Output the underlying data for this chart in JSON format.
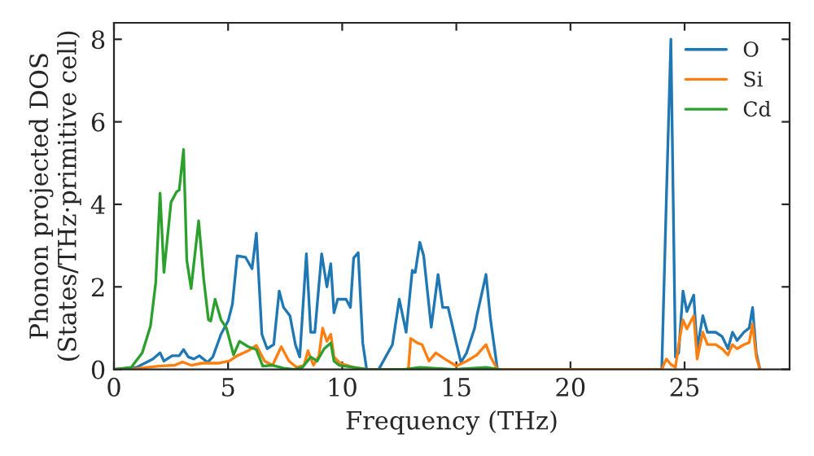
{
  "chart_data": {
    "type": "line",
    "xlabel": "Frequency (THz)",
    "ylabel": "Phonon projected DOS\n(States/THz·primitive cell)",
    "xlim": [
      0,
      29.6
    ],
    "ylim": [
      0,
      8.4
    ],
    "xticks": [
      0,
      5,
      10,
      15,
      20,
      25
    ],
    "yticks": [
      0,
      2,
      4,
      6,
      8
    ],
    "grid": false,
    "legend": "top right",
    "marker": "none",
    "line_style": "solid",
    "series": [
      {
        "name": "O",
        "color": "#1f77b4",
        "x": [
          0,
          1.0,
          1.7,
          2.02,
          2.19,
          2.55,
          2.86,
          3.05,
          3.26,
          3.5,
          3.74,
          4.1,
          4.33,
          4.69,
          5.0,
          5.19,
          5.4,
          5.76,
          6.05,
          6.24,
          6.48,
          6.71,
          7.0,
          7.24,
          7.43,
          7.71,
          7.95,
          8.14,
          8.43,
          8.62,
          8.8,
          9.1,
          9.33,
          9.5,
          9.64,
          9.8,
          10.17,
          10.36,
          10.5,
          10.7,
          10.9,
          11.07,
          11.6,
          12.2,
          12.5,
          12.8,
          13.07,
          13.2,
          13.4,
          13.57,
          13.9,
          14.2,
          14.4,
          14.64,
          15.0,
          15.2,
          15.45,
          15.8,
          15.9,
          16.3,
          16.5,
          16.8,
          24.0,
          24.2,
          24.4,
          24.6,
          24.74,
          24.93,
          25.1,
          25.4,
          25.55,
          25.8,
          26.0,
          26.36,
          26.64,
          26.9,
          27.1,
          27.3,
          27.6,
          27.83,
          27.98,
          28.14,
          28.3
        ],
        "values": [
          0,
          0.05,
          0.25,
          0.4,
          0.2,
          0.33,
          0.33,
          0.48,
          0.3,
          0.25,
          0.33,
          0.17,
          0.3,
          0.85,
          1.17,
          1.58,
          2.75,
          2.72,
          2.44,
          3.3,
          0.85,
          0.5,
          0.6,
          1.9,
          1.5,
          1.3,
          0.6,
          0.3,
          2.8,
          0.9,
          0.9,
          2.8,
          2.0,
          2.56,
          1.37,
          1.7,
          1.7,
          1.5,
          2.7,
          2.83,
          0.64,
          0,
          0,
          0.6,
          1.7,
          0.9,
          2.4,
          2.35,
          3.08,
          2.75,
          1.02,
          2.3,
          1.5,
          1.5,
          0.64,
          0.17,
          0.4,
          1.0,
          1.3,
          2.3,
          1.2,
          0,
          0,
          4.1,
          8.0,
          0.3,
          0.4,
          1.9,
          1.4,
          1.8,
          0.5,
          1.3,
          0.9,
          0.9,
          0.8,
          0.5,
          0.9,
          0.7,
          0.9,
          1.0,
          1.5,
          0.4,
          0
        ]
      },
      {
        "name": "Si",
        "color": "#ff7f0e",
        "x": [
          0,
          1.0,
          1.95,
          2.67,
          3.0,
          3.38,
          3.86,
          4.57,
          5.05,
          5.4,
          5.88,
          6.24,
          6.6,
          6.95,
          7.33,
          7.67,
          8.0,
          8.33,
          8.5,
          8.74,
          8.98,
          9.14,
          9.33,
          9.5,
          9.64,
          9.9,
          10.5,
          11.1,
          12.9,
          13.0,
          13.3,
          13.5,
          13.8,
          14.1,
          14.5,
          14.8,
          15.0,
          15.45,
          15.9,
          16.3,
          16.5,
          16.8,
          24.0,
          24.2,
          24.4,
          24.6,
          24.74,
          24.93,
          25.1,
          25.4,
          25.55,
          25.8,
          26.0,
          26.36,
          26.64,
          26.9,
          27.1,
          27.3,
          27.6,
          27.83,
          27.98,
          28.14,
          28.3
        ],
        "values": [
          0,
          0.02,
          0.08,
          0.1,
          0.18,
          0.1,
          0.15,
          0.15,
          0.2,
          0.33,
          0.45,
          0.58,
          0.2,
          0.1,
          0.55,
          0.2,
          0.05,
          0.1,
          0.45,
          0.1,
          0.33,
          1.0,
          0.68,
          0.85,
          0.3,
          0.15,
          0.05,
          0,
          0,
          0.75,
          0.64,
          0.6,
          0.2,
          0.4,
          0.25,
          0.15,
          0.08,
          0.2,
          0.35,
          0.6,
          0.3,
          0,
          0,
          0.25,
          0.12,
          0.05,
          0.6,
          1.2,
          0.98,
          1.3,
          0.25,
          0.9,
          0.6,
          0.6,
          0.5,
          0.35,
          0.6,
          0.5,
          0.6,
          0.65,
          1.1,
          0.3,
          0
        ]
      },
      {
        "name": "Cd",
        "color": "#2ca02c",
        "x": [
          0,
          0.76,
          1.24,
          1.6,
          1.83,
          2.02,
          2.19,
          2.5,
          2.74,
          2.86,
          3.05,
          3.19,
          3.38,
          3.71,
          3.93,
          4.14,
          4.24,
          4.43,
          4.69,
          4.93,
          5.24,
          5.5,
          5.88,
          6.24,
          6.52,
          6.95,
          7.43,
          7.9,
          8.26,
          8.62,
          8.9,
          9.21,
          9.5,
          9.64,
          9.86,
          10.5,
          11.1,
          12.7,
          13.4,
          14.9,
          16.3,
          16.9
        ],
        "values": [
          0,
          0.05,
          0.4,
          1.05,
          2.1,
          4.27,
          2.35,
          4.05,
          4.3,
          4.35,
          5.33,
          2.65,
          1.96,
          3.6,
          2.2,
          1.2,
          1.17,
          1.7,
          1.2,
          1.0,
          0.35,
          0.68,
          0.55,
          0.48,
          0.08,
          0.1,
          0.03,
          0,
          0.05,
          0.3,
          0.2,
          0.5,
          0.64,
          0.2,
          0.1,
          0.05,
          0,
          0,
          0.05,
          0,
          0.05,
          0
        ]
      }
    ]
  }
}
